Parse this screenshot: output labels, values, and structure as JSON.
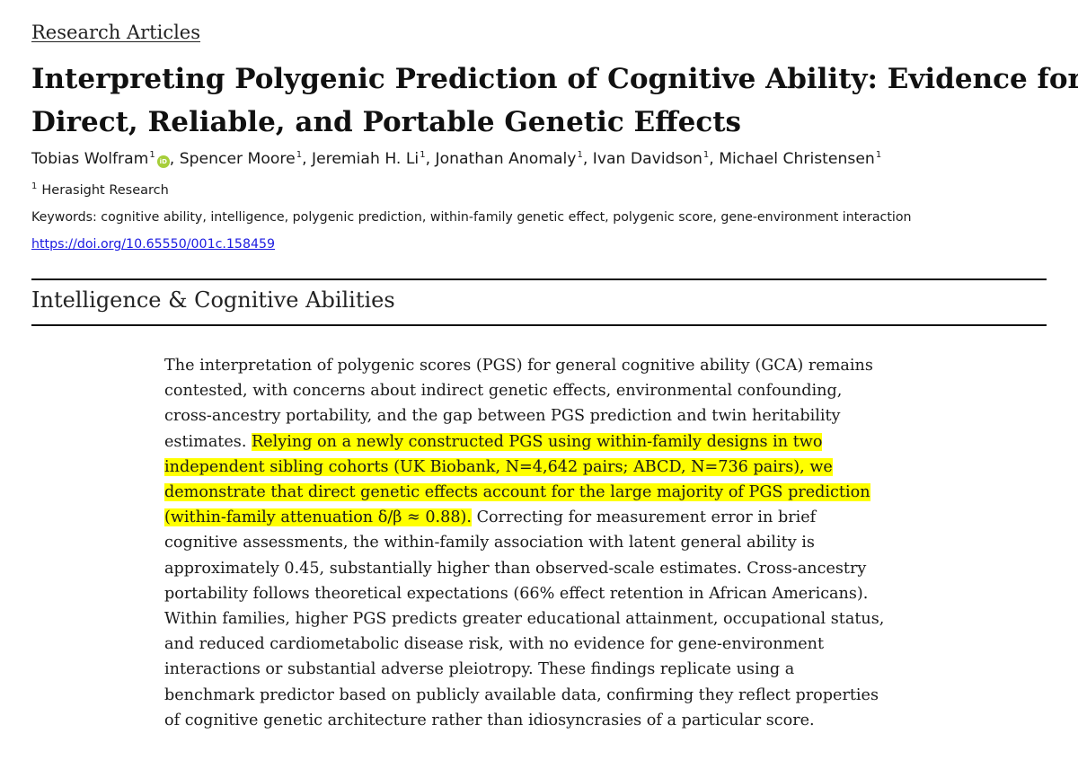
{
  "header": {
    "section_link": "Research Articles",
    "title_lines": [
      "Interpreting Polygenic Prediction of Cognitive Ability: Evidence for",
      "Direct, Reliable, and Portable Genetic Effects"
    ]
  },
  "authors": [
    {
      "name": "Tobias Wolfram",
      "aff": "1",
      "orcid": true
    },
    {
      "name": "Spencer Moore",
      "aff": "1"
    },
    {
      "name": "Jeremiah H. Li",
      "aff": "1"
    },
    {
      "name": "Jonathan Anomaly",
      "aff": "1"
    },
    {
      "name": "Ivan Davidson",
      "aff": "1"
    },
    {
      "name": "Michael Christensen",
      "aff": "1"
    }
  ],
  "orcid_icon": {
    "icon": "orcid-icon",
    "label": "iD",
    "color": "#a6ce39"
  },
  "affiliation": {
    "number": "1",
    "name": "Herasight Research"
  },
  "keywords": "Keywords: cognitive ability, intelligence, polygenic prediction, within-family genetic effect, polygenic score, gene-environment interaction",
  "doi": "https://doi.org/10.65550/001c.158459",
  "section_heading": "Intelligence & Cognitive Abilities",
  "abstract": {
    "highlight_color": "#ffff00",
    "lines": [
      {
        "text": "The interpretation of polygenic scores (PGS) for general cognitive ability (GCA) remains"
      },
      {
        "text": "contested, with concerns about indirect genetic effects, environmental confounding,"
      },
      {
        "text": "cross-ancestry portability, and the gap between PGS prediction and twin heritability"
      },
      {
        "pre": "estimates. ",
        "hl": "Relying on a newly constructed PGS using within-family designs in two"
      },
      {
        "hl": "independent sibling cohorts (UK Biobank, N=4,642 pairs; ABCD, N=736 pairs), we"
      },
      {
        "hl": "demonstrate that direct genetic effects account for the large majority of PGS prediction"
      },
      {
        "hl": "(within-family attenuation δ/β ≈ 0.88).",
        "post": " Correcting for measurement error in brief"
      },
      {
        "text": "cognitive assessments, the within-family association with latent general ability is"
      },
      {
        "text": "approximately 0.45, substantially higher than observed-scale estimates. Cross-ancestry"
      },
      {
        "text": "portability follows theoretical expectations (66% effect retention in African Americans)."
      },
      {
        "text": "Within families, higher PGS predicts greater educational attainment, occupational status,"
      },
      {
        "text": "and reduced cardiometabolic disease risk, with no evidence for gene-environment"
      },
      {
        "text": "interactions or substantial adverse pleiotropy. These findings replicate using a"
      },
      {
        "text": "benchmark predictor based on publicly available data, confirming they reflect properties"
      },
      {
        "text": "of cognitive genetic architecture rather than idiosyncrasies of a particular score."
      }
    ]
  }
}
